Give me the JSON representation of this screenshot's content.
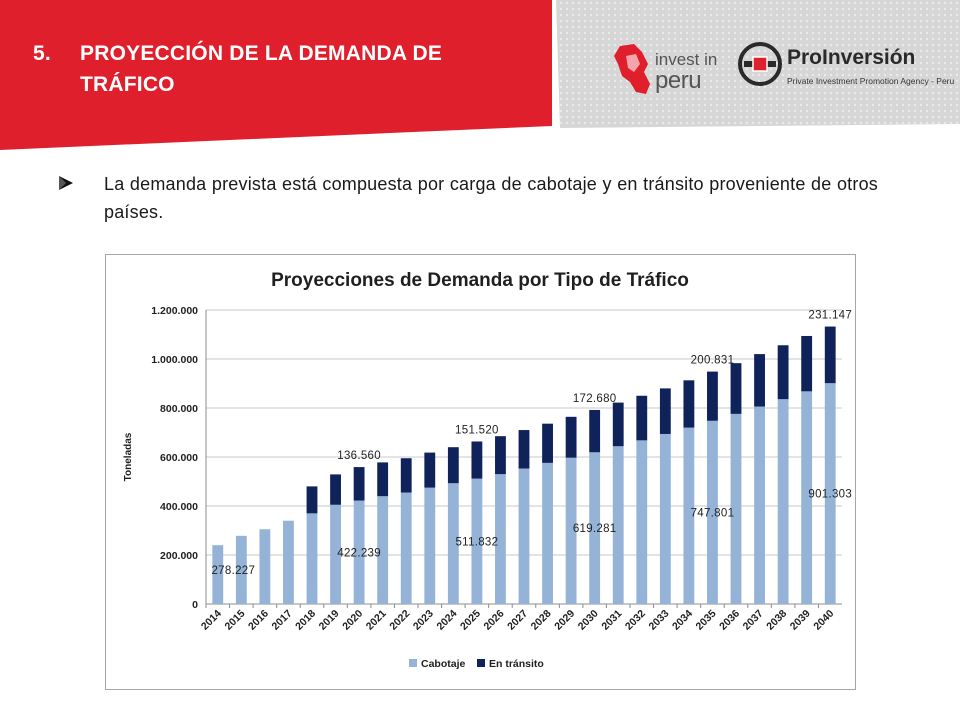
{
  "header": {
    "number": "5.",
    "title_line1": "PROYECCIÓN DE LA DEMANDA DE",
    "title_line2": "TRÁFICO",
    "colors": {
      "red": "#e01f2d",
      "gray": "#d4d4d4",
      "text": "#ffffff"
    }
  },
  "logos": {
    "invest_line1": "invest in",
    "invest_line2": "peru",
    "proinversion_name": "ProInversión",
    "proinversion_sub": "Private Investment Promotion Agency - Peru"
  },
  "bullet": {
    "text": "La demanda prevista está compuesta por carga de cabotaje y en tránsito proveniente de otros países."
  },
  "chart_data": {
    "type": "bar",
    "stacked": true,
    "title": "Proyecciones de Demanda por Tipo de Tráfico",
    "xlabel": "",
    "ylabel": "Toneladas",
    "ylim": [
      0,
      1200000
    ],
    "yticks": [
      0,
      200000,
      400000,
      600000,
      800000,
      1000000,
      1200000
    ],
    "ytick_labels": [
      "0",
      "200.000",
      "400.000",
      "600.000",
      "800.000",
      "1.000.000",
      "1.200.000"
    ],
    "grid": true,
    "legend_position": "bottom",
    "categories": [
      "2014",
      "2015",
      "2016",
      "2017",
      "2018",
      "2019",
      "2020",
      "2021",
      "2022",
      "2023",
      "2024",
      "2025",
      "2026",
      "2027",
      "2028",
      "2029",
      "2030",
      "2031",
      "2032",
      "2033",
      "2034",
      "2035",
      "2036",
      "2037",
      "2038",
      "2039",
      "2040"
    ],
    "series": [
      {
        "name": "Cabotaje",
        "color": "#95b3d7",
        "values": [
          240000,
          278227,
          305000,
          340000,
          370000,
          405000,
          422239,
          440000,
          455000,
          475000,
          493000,
          511832,
          530000,
          553000,
          576000,
          597000,
          619281,
          644000,
          668000,
          694000,
          720000,
          747801,
          776000,
          806000,
          836000,
          868000,
          901303
        ]
      },
      {
        "name": "En tránsito",
        "color": "#10225a",
        "values": [
          0,
          0,
          0,
          0,
          110000,
          124000,
          136560,
          138000,
          140000,
          143000,
          147000,
          151520,
          155000,
          157000,
          160000,
          167000,
          172680,
          178000,
          182000,
          186000,
          193000,
          200831,
          207000,
          214000,
          220000,
          226000,
          231147
        ]
      }
    ],
    "data_labels": [
      {
        "category": "2015",
        "series": "Cabotaje",
        "text": "278.227"
      },
      {
        "category": "2020",
        "series": "Cabotaje",
        "text": "422.239"
      },
      {
        "category": "2025",
        "series": "Cabotaje",
        "text": "511.832"
      },
      {
        "category": "2030",
        "series": "Cabotaje",
        "text": "619.281"
      },
      {
        "category": "2035",
        "series": "Cabotaje",
        "text": "747.801"
      },
      {
        "category": "2040",
        "series": "Cabotaje",
        "text": "901.303"
      },
      {
        "category": "2020",
        "series": "En tránsito",
        "text": "136.560"
      },
      {
        "category": "2025",
        "series": "En tránsito",
        "text": "151.520"
      },
      {
        "category": "2030",
        "series": "En tránsito",
        "text": "172.680"
      },
      {
        "category": "2035",
        "series": "En tránsito",
        "text": "200.831"
      },
      {
        "category": "2040",
        "series": "En tránsito",
        "text": "231.147"
      }
    ]
  }
}
